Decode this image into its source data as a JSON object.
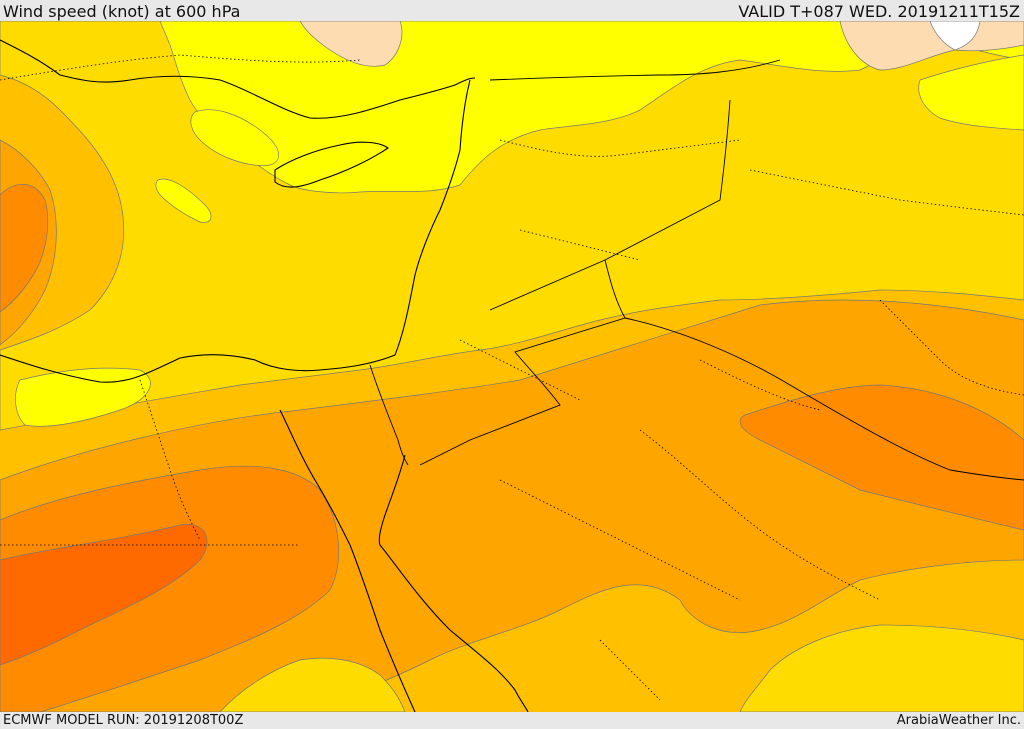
{
  "header": {
    "title": "Wind speed (knot) at 600 hPa",
    "valid": "VALID T+087 WED. 20191211T15Z"
  },
  "footer": {
    "model_run": "ECMWF MODEL RUN: 20191208T00Z",
    "credit": "ArabiaWeather Inc."
  },
  "colors": {
    "band_0": "#ffffff",
    "band_1": "#fcdcb0",
    "band_2": "#ffff00",
    "band_3": "#ffdc00",
    "band_4": "#ffc000",
    "band_5": "#ffa500",
    "band_6": "#ff8c00",
    "band_7": "#ff6a00",
    "coast": "#000000",
    "contour": "#777777"
  }
}
